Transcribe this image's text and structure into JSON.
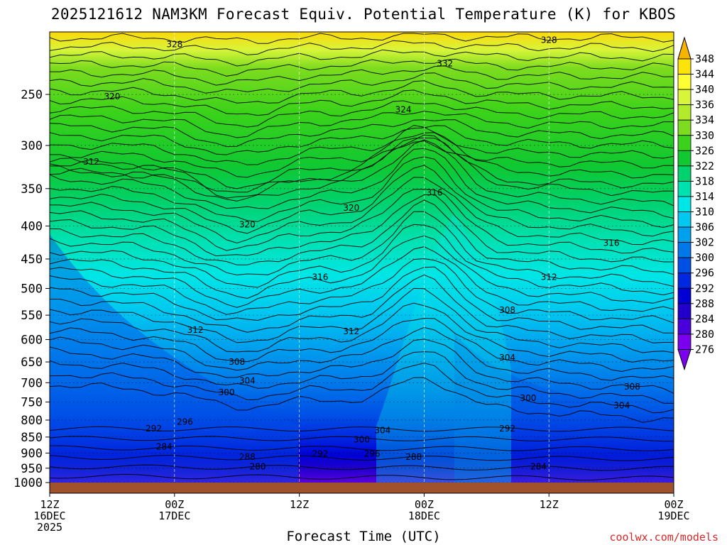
{
  "title": "2025121612 NAM3KM Forecast Equiv. Potential Temperature (K) for KBOS",
  "credit": "coolwx.com/models",
  "chart_data": {
    "type": "heatmap",
    "title": "2025121612 NAM3KM Forecast Equiv. Potential Temperature (K) for KBOS",
    "xlabel": "Forecast Time (UTC)",
    "ylabel": "",
    "y_axis": {
      "scale": "log",
      "inverted": true,
      "ticks": [
        250,
        300,
        350,
        400,
        450,
        500,
        550,
        600,
        650,
        700,
        750,
        800,
        850,
        900,
        950,
        1000
      ],
      "range": [
        200,
        1050
      ]
    },
    "x_axis": {
      "ticks": [
        {
          "hour": 0,
          "lines": [
            "12Z",
            "16DEC",
            "2025"
          ]
        },
        {
          "hour": 12,
          "lines": [
            "00Z",
            "17DEC"
          ]
        },
        {
          "hour": 24,
          "lines": [
            "12Z"
          ]
        },
        {
          "hour": 36,
          "lines": [
            "00Z",
            "18DEC"
          ]
        },
        {
          "hour": 48,
          "lines": [
            "12Z"
          ]
        },
        {
          "hour": 60,
          "lines": [
            "00Z",
            "19DEC"
          ]
        }
      ],
      "range_hours": [
        0,
        60
      ]
    },
    "grid": true,
    "colorbar": {
      "labels": [
        348,
        344,
        340,
        336,
        334,
        330,
        326,
        322,
        318,
        314,
        310,
        306,
        302,
        300,
        296,
        292,
        288,
        284,
        280,
        276
      ],
      "colors": [
        "#f4b400",
        "#fce40a",
        "#ffff33",
        "#d8f53a",
        "#b2ea2c",
        "#7ddc1f",
        "#3ad21a",
        "#0fc832",
        "#00d26e",
        "#00e1b0",
        "#00e6e6",
        "#00c8f0",
        "#00a0ee",
        "#0078ea",
        "#0050e6",
        "#0028e0",
        "#0000d6",
        "#2200cc",
        "#4a00d8",
        "#7a00ee"
      ]
    },
    "contour_labels": [
      {
        "t": 12,
        "p": 209,
        "v": 328
      },
      {
        "t": 48,
        "p": 206,
        "v": 328
      },
      {
        "t": 38,
        "p": 224,
        "v": 332
      },
      {
        "t": 6,
        "p": 252,
        "v": 320
      },
      {
        "t": 34,
        "p": 264,
        "v": 324
      },
      {
        "t": 4,
        "p": 318,
        "v": 312
      },
      {
        "t": 29,
        "p": 375,
        "v": 320
      },
      {
        "t": 37,
        "p": 355,
        "v": 316
      },
      {
        "t": 19,
        "p": 398,
        "v": 320
      },
      {
        "t": 54,
        "p": 425,
        "v": 316
      },
      {
        "t": 26,
        "p": 480,
        "v": 316
      },
      {
        "t": 48,
        "p": 480,
        "v": 312
      },
      {
        "t": 44,
        "p": 540,
        "v": 308
      },
      {
        "t": 14,
        "p": 580,
        "v": 312
      },
      {
        "t": 29,
        "p": 583,
        "v": 312
      },
      {
        "t": 44,
        "p": 640,
        "v": 304
      },
      {
        "t": 18,
        "p": 650,
        "v": 308
      },
      {
        "t": 19,
        "p": 695,
        "v": 304
      },
      {
        "t": 17,
        "p": 725,
        "v": 300
      },
      {
        "t": 46,
        "p": 740,
        "v": 300
      },
      {
        "t": 56,
        "p": 710,
        "v": 308
      },
      {
        "t": 55,
        "p": 760,
        "v": 304
      },
      {
        "t": 13,
        "p": 805,
        "v": 296
      },
      {
        "t": 10,
        "p": 825,
        "v": 292
      },
      {
        "t": 44,
        "p": 825,
        "v": 292
      },
      {
        "t": 32,
        "p": 830,
        "v": 304
      },
      {
        "t": 30,
        "p": 858,
        "v": 300
      },
      {
        "t": 11,
        "p": 880,
        "v": 284
      },
      {
        "t": 19,
        "p": 913,
        "v": 288
      },
      {
        "t": 26,
        "p": 902,
        "v": 292
      },
      {
        "t": 31,
        "p": 902,
        "v": 296
      },
      {
        "t": 35,
        "p": 913,
        "v": 288
      },
      {
        "t": 20,
        "p": 945,
        "v": 280
      },
      {
        "t": 47,
        "p": 945,
        "v": 284
      }
    ]
  }
}
